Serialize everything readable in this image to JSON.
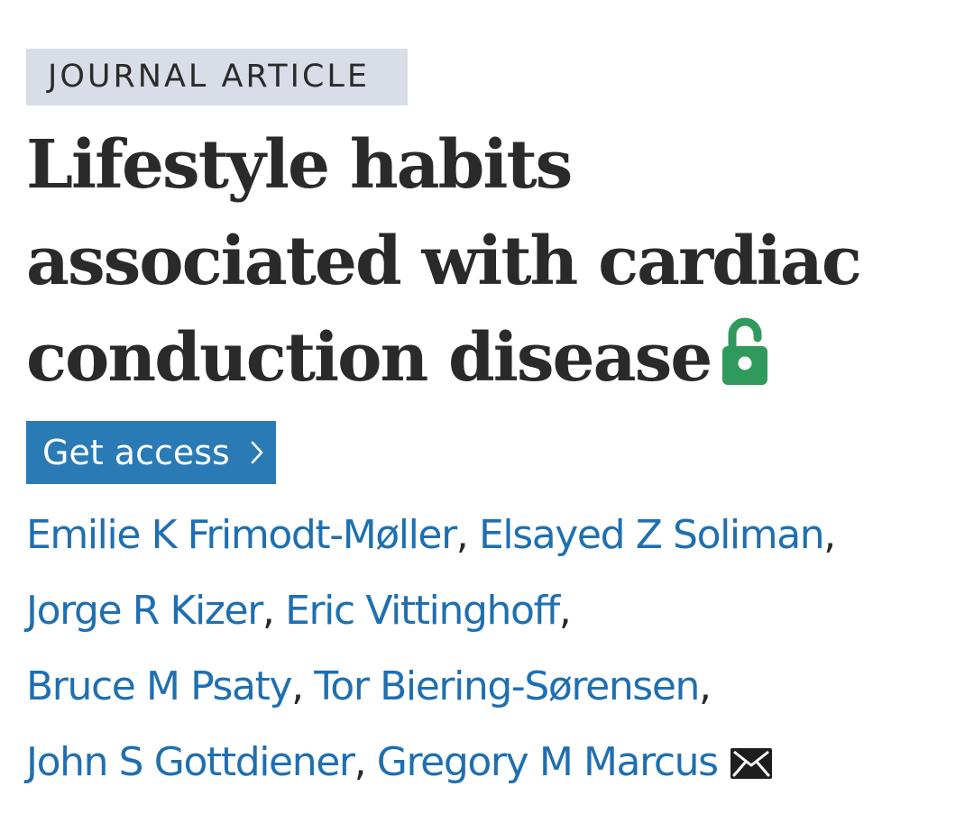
{
  "article": {
    "type_badge": "JOURNAL ARTICLE",
    "title_lines": [
      "Lifestyle habits",
      "associated with cardiac",
      "conduction disease"
    ],
    "access_icon": "open-lock-icon",
    "access_icon_color": "#2f9a5c"
  },
  "access_button": {
    "label": "Get access",
    "icon": "chevron-right-icon",
    "background": "#2a7ab5"
  },
  "authors": {
    "link_color": "#1f6fb0",
    "separator": ",",
    "names": [
      "Emilie K Frimodt-Møller",
      "Elsayed Z Soliman",
      "Jorge R Kizer",
      "Eric Vittinghoff",
      "Bruce M Psaty",
      "Tor Biering-Sørensen",
      "John S Gottdiener",
      "Gregory M Marcus"
    ],
    "corresponding_icon": "envelope-icon"
  }
}
